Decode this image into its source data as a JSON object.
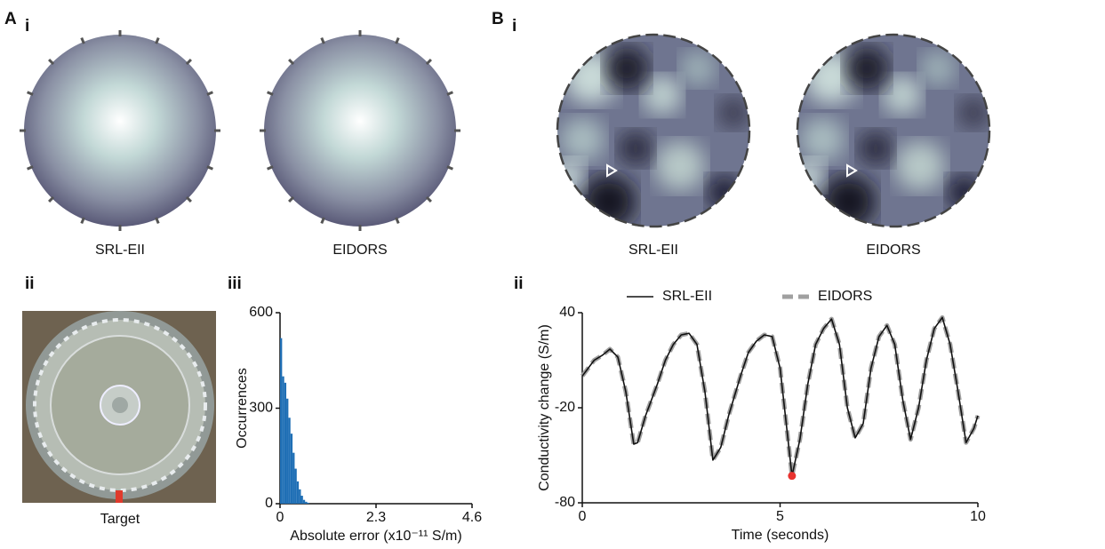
{
  "panel_labels": [
    "A",
    "i",
    "B",
    "i",
    "ii",
    "iii",
    "ii"
  ],
  "captions": [
    "SRL-EII",
    "EIDORS",
    "SRL-EII",
    "EIDORS",
    "Target"
  ],
  "chart_data": [
    {
      "type": "histogram",
      "xlabel": "Absolute error (x10⁻¹¹ S/m)",
      "ylabel": "Occurrences",
      "bins": [
        0,
        0.05,
        0.1,
        0.15,
        0.2,
        0.25,
        0.3,
        0.35,
        0.4,
        0.45,
        0.5,
        0.55,
        0.6,
        0.65,
        0.7
      ],
      "values": [
        520,
        400,
        380,
        330,
        270,
        220,
        160,
        110,
        70,
        45,
        25,
        12,
        6,
        3
      ],
      "color": "#1f6fb5",
      "xlim": [
        0,
        4.6
      ],
      "xticks": [
        0,
        2.3,
        4.6
      ],
      "ylim": [
        0,
        600
      ],
      "yticks": [
        0,
        300,
        600
      ]
    },
    {
      "type": "line",
      "xlabel": "Time (seconds)",
      "ylabel": "Conductivity change (S/m)",
      "x": [
        0,
        0.3,
        0.5,
        0.7,
        0.9,
        1.1,
        1.3,
        1.4,
        1.6,
        1.9,
        2.1,
        2.3,
        2.5,
        2.7,
        2.9,
        3.1,
        3.3,
        3.5,
        3.7,
        4.0,
        4.2,
        4.4,
        4.6,
        4.8,
        5.0,
        5.2,
        5.3,
        5.5,
        5.7,
        5.9,
        6.1,
        6.3,
        6.5,
        6.7,
        6.9,
        7.1,
        7.3,
        7.5,
        7.7,
        7.9,
        8.1,
        8.3,
        8.5,
        8.7,
        8.9,
        9.1,
        9.3,
        9.5,
        9.7,
        9.9,
        10.0
      ],
      "series": [
        {
          "name": "SRL-EII",
          "color": "#111111",
          "dash": false,
          "values": [
            0,
            10,
            13,
            17,
            12,
            -10,
            -43,
            -42,
            -25,
            -5,
            10,
            20,
            26,
            27,
            20,
            -10,
            -53,
            -45,
            -25,
            0,
            15,
            22,
            26,
            25,
            5,
            -40,
            -63,
            -40,
            -5,
            20,
            30,
            36,
            20,
            -20,
            -39,
            -30,
            5,
            25,
            32,
            20,
            -15,
            -40,
            -20,
            10,
            30,
            37,
            20,
            -10,
            -42,
            -33,
            -25
          ]
        },
        {
          "name": "EIDORS",
          "color": "#a0a0a0",
          "dash": true,
          "values": [
            0,
            10,
            13,
            17,
            12,
            -10,
            -43,
            -42,
            -25,
            -5,
            10,
            20,
            26,
            27,
            20,
            -10,
            -53,
            -45,
            -25,
            0,
            15,
            22,
            26,
            25,
            5,
            -40,
            -63,
            -40,
            -5,
            20,
            30,
            36,
            20,
            -20,
            -39,
            -30,
            5,
            25,
            32,
            20,
            -15,
            -40,
            -20,
            10,
            30,
            37,
            20,
            -10,
            -42,
            -33,
            -25
          ]
        }
      ],
      "highlight": {
        "x": 5.3,
        "y": -63,
        "color": "#e8332f"
      },
      "legend": "top",
      "xlim": [
        0,
        10
      ],
      "xticks": [
        0,
        5,
        10
      ],
      "ylim": [
        -80,
        40
      ],
      "yticks": [
        40,
        -20,
        -80
      ]
    }
  ]
}
